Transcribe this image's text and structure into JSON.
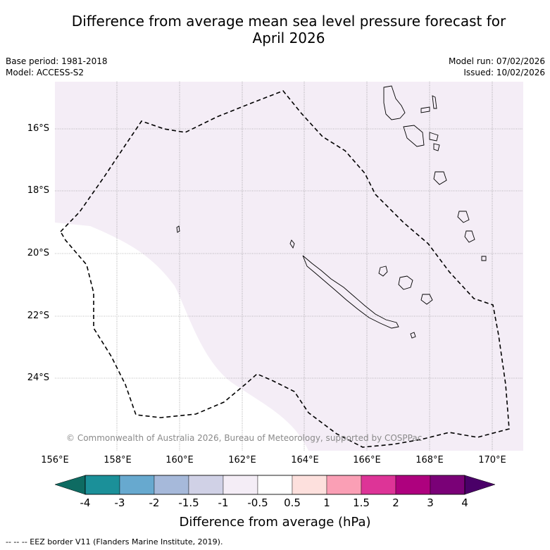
{
  "title_line1": "Difference from average mean sea level pressure forecast for",
  "title_line2": "April 2026",
  "base_period": "Base period: 1981-2018",
  "model": "Model: ACCESS-S2",
  "model_run": "Model run: 07/02/2026",
  "issued": "Issued: 10/02/2026",
  "copyright": "© Commonwealth of Australia 2026, Bureau of Meteorology, supported by COSPPac",
  "lat_labels": [
    "16°S",
    "18°S",
    "20°S",
    "22°S",
    "24°S"
  ],
  "lon_labels": [
    "156°E",
    "158°E",
    "160°E",
    "162°E",
    "164°E",
    "166°E",
    "168°E",
    "170°E"
  ],
  "colorbar": {
    "title": "Difference from average (hPa)",
    "tick_labels": [
      "-4",
      "-3",
      "-2",
      "-1.5",
      "-1",
      "-0.5",
      "0.5",
      "1",
      "1.5",
      "2",
      "3",
      "4"
    ],
    "colors": {
      "below_min": "#0e6b62",
      "bins": [
        "#1b9099",
        "#67a9cf",
        "#a6b9da",
        "#d0d1e6",
        "#f4edf6",
        "#ffffff",
        "#fde0dd",
        "#fa9fb5",
        "#dd3497",
        "#ae017e",
        "#7a0177"
      ],
      "above_max": "#4a0068"
    }
  },
  "map": {
    "shading_color": "#f4edf6",
    "extent": {
      "lon_min": 156,
      "lon_max": 171,
      "lat_min": -26,
      "lat_max": -14.5
    }
  },
  "footer": "--  --  -- EEZ border V11 (Flanders Marine Institute, 2019)."
}
